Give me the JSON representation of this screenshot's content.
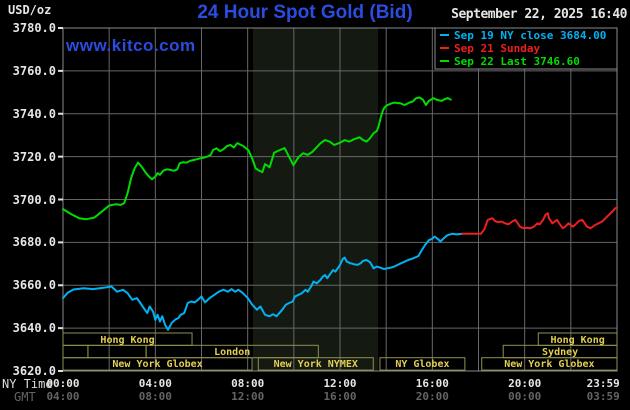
{
  "header": {
    "unit_label": "USD/oz",
    "title": "24 Hour Spot Gold (Bid)",
    "datetime": "September 22, 2025 16:40",
    "watermark": "www.kitco.com"
  },
  "legend": {
    "items": [
      {
        "label": "Sep 19 NY close 3684.00",
        "color": "#00b2f2"
      },
      {
        "label": "Sep 21 Sunday",
        "color": "#ee1f1f"
      },
      {
        "label": "Sep 22 Last 3746.60",
        "color": "#00dc00"
      }
    ]
  },
  "axes": {
    "y": {
      "tick_labels": [
        "3780.0",
        "3760.0",
        "3740.0",
        "3720.0",
        "3700.0",
        "3680.0",
        "3660.0",
        "3640.0",
        "3620.0"
      ],
      "tick_values": [
        3780,
        3760,
        3740,
        3720,
        3700,
        3680,
        3660,
        3640,
        3620
      ]
    },
    "x": {
      "ny_label": "NY Time",
      "gmt_label": "GMT",
      "ny_ticks": [
        {
          "t": 0,
          "label": "00:00"
        },
        {
          "t": 4,
          "label": "04:00"
        },
        {
          "t": 8,
          "label": "08:00"
        },
        {
          "t": 12,
          "label": "12:00"
        },
        {
          "t": 16,
          "label": "16:00"
        },
        {
          "t": 20,
          "label": "20:00"
        },
        {
          "t": 23.4,
          "label": "23:59"
        }
      ],
      "gmt_ticks": [
        {
          "t": 0,
          "label": "04:00"
        },
        {
          "t": 4,
          "label": "08:00"
        },
        {
          "t": 8,
          "label": "12:00"
        },
        {
          "t": 12,
          "label": "16:00"
        },
        {
          "t": 16,
          "label": "20:00"
        },
        {
          "t": 20,
          "label": "00:00"
        },
        {
          "t": 23.4,
          "label": "03:59"
        }
      ]
    }
  },
  "sessions": [
    {
      "row": 0,
      "t0": 0,
      "t1": 5.59,
      "label": "Hong Kong"
    },
    {
      "row": 0,
      "t0": 20.59,
      "t1": 24,
      "label": "Hong Kong"
    },
    {
      "row": 1,
      "t0": 0,
      "t1": 1.08,
      "label": ""
    },
    {
      "row": 1,
      "t0": 1.08,
      "t1": 3.6,
      "label": ""
    },
    {
      "row": 1,
      "t0": 3.6,
      "t1": 11.06,
      "label": "London"
    },
    {
      "row": 1,
      "t0": 19.07,
      "t1": 24,
      "label": "Sydney"
    },
    {
      "row": 2,
      "t0": 0,
      "t1": 8.19,
      "label": "New York Globex"
    },
    {
      "row": 2,
      "t0": 8.46,
      "t1": 13.44,
      "label": "New York NYMEX"
    },
    {
      "row": 2,
      "t0": 13.73,
      "t1": 17.41,
      "label": "NY Globex"
    },
    {
      "row": 2,
      "t0": 18.14,
      "t1": 24,
      "label": "New York Globex"
    }
  ],
  "colors": {
    "background": "#000000",
    "plot_border": "#8a8a8a",
    "grid": "#676767",
    "band": "#141a12",
    "tick": "#e0e0e0",
    "text_white": "#e6e6e6",
    "text_gray": "#646464",
    "blue": "#2b4ce0",
    "session_border": "#91914e",
    "session_text": "#e3cf52",
    "legend_box_border": "#8a8a8a"
  },
  "chart_data": {
    "type": "line",
    "title": "24 Hour Spot Gold (Bid)",
    "xlabel": "NY Time",
    "ylabel": "USD/oz",
    "x_unit": "decimal hours NY time",
    "xlim": [
      0,
      24
    ],
    "ylim": [
      3620,
      3780
    ],
    "grid": true,
    "legend_position": "top-right",
    "highlight_band_x": [
      8.23,
      13.65
    ],
    "series": [
      {
        "name": "Sep 19 NY close 3684.00",
        "color": "#00b2f2",
        "points": [
          [
            0,
            3654
          ],
          [
            0.2,
            3656.5
          ],
          [
            0.45,
            3658
          ],
          [
            0.9,
            3658.6
          ],
          [
            1.3,
            3658.2
          ],
          [
            1.75,
            3658.8
          ],
          [
            2.1,
            3659.4
          ],
          [
            2.35,
            3657
          ],
          [
            2.6,
            3657.9
          ],
          [
            2.8,
            3656.3
          ],
          [
            3.0,
            3653.2
          ],
          [
            3.2,
            3654
          ],
          [
            3.35,
            3651.7
          ],
          [
            3.5,
            3649.3
          ],
          [
            3.65,
            3647
          ],
          [
            3.75,
            3650.1
          ],
          [
            3.9,
            3647.8
          ],
          [
            4.0,
            3643.9
          ],
          [
            4.1,
            3646.2
          ],
          [
            4.2,
            3643.1
          ],
          [
            4.3,
            3645.5
          ],
          [
            4.42,
            3641.6
          ],
          [
            4.55,
            3639.2
          ],
          [
            4.7,
            3642.3
          ],
          [
            4.85,
            3643.9
          ],
          [
            5.0,
            3644.7
          ],
          [
            5.1,
            3646.2
          ],
          [
            5.25,
            3647
          ],
          [
            5.4,
            3651.7
          ],
          [
            5.55,
            3652.4
          ],
          [
            5.7,
            3652
          ],
          [
            5.85,
            3653.2
          ],
          [
            6.0,
            3654.8
          ],
          [
            6.15,
            3652
          ],
          [
            6.35,
            3654
          ],
          [
            6.55,
            3655.5
          ],
          [
            6.75,
            3657
          ],
          [
            6.95,
            3657.9
          ],
          [
            7.15,
            3657
          ],
          [
            7.3,
            3658.2
          ],
          [
            7.45,
            3657
          ],
          [
            7.6,
            3657.9
          ],
          [
            7.8,
            3656.3
          ],
          [
            8.0,
            3654
          ],
          [
            8.2,
            3650.9
          ],
          [
            8.4,
            3648.6
          ],
          [
            8.55,
            3650.1
          ],
          [
            8.75,
            3646.2
          ],
          [
            8.95,
            3645.5
          ],
          [
            9.1,
            3646.5
          ],
          [
            9.25,
            3645.5
          ],
          [
            9.5,
            3648.6
          ],
          [
            9.65,
            3650.9
          ],
          [
            9.8,
            3651.7
          ],
          [
            9.95,
            3652.4
          ],
          [
            10.05,
            3654.8
          ],
          [
            10.2,
            3655.5
          ],
          [
            10.35,
            3656.3
          ],
          [
            10.5,
            3657.9
          ],
          [
            10.6,
            3657
          ],
          [
            10.75,
            3659.4
          ],
          [
            10.85,
            3661.7
          ],
          [
            11.0,
            3660.9
          ],
          [
            11.15,
            3662.5
          ],
          [
            11.25,
            3664
          ],
          [
            11.35,
            3664.8
          ],
          [
            11.45,
            3663.3
          ],
          [
            11.6,
            3665.6
          ],
          [
            11.7,
            3667.1
          ],
          [
            11.8,
            3666.3
          ],
          [
            11.9,
            3667.9
          ],
          [
            12.0,
            3669.5
          ],
          [
            12.12,
            3672.3
          ],
          [
            12.2,
            3672.9
          ],
          [
            12.3,
            3671
          ],
          [
            12.45,
            3670.3
          ],
          [
            12.6,
            3669.8
          ],
          [
            12.75,
            3669.5
          ],
          [
            12.9,
            3670.3
          ],
          [
            13.0,
            3671.4
          ],
          [
            13.15,
            3671.8
          ],
          [
            13.3,
            3670.8
          ],
          [
            13.45,
            3667.9
          ],
          [
            13.6,
            3668.7
          ],
          [
            13.75,
            3668.2
          ],
          [
            13.9,
            3667.6
          ],
          [
            14.05,
            3667.9
          ],
          [
            14.2,
            3668.2
          ],
          [
            14.35,
            3668.7
          ],
          [
            14.5,
            3669.5
          ],
          [
            14.65,
            3670.3
          ],
          [
            14.8,
            3671
          ],
          [
            14.95,
            3671.8
          ],
          [
            15.1,
            3672.3
          ],
          [
            15.25,
            3672.9
          ],
          [
            15.4,
            3673.7
          ],
          [
            15.55,
            3676.5
          ],
          [
            15.7,
            3679
          ],
          [
            15.85,
            3681
          ],
          [
            16.0,
            3681.7
          ],
          [
            16.1,
            3682.7
          ],
          [
            16.25,
            3681.5
          ],
          [
            16.35,
            3680.4
          ],
          [
            16.5,
            3682
          ],
          [
            16.65,
            3683.3
          ],
          [
            16.85,
            3684
          ],
          [
            17.05,
            3683.7
          ],
          [
            17.3,
            3684
          ]
        ]
      },
      {
        "name": "Sep 21 Sunday",
        "color": "#ee1f1f",
        "points": [
          [
            17.3,
            3684
          ],
          [
            18.1,
            3684
          ],
          [
            18.25,
            3686
          ],
          [
            18.4,
            3690.5
          ],
          [
            18.6,
            3691.3
          ],
          [
            18.7,
            3690
          ],
          [
            18.85,
            3689.4
          ],
          [
            19.0,
            3689.7
          ],
          [
            19.15,
            3688.9
          ],
          [
            19.3,
            3688.4
          ],
          [
            19.45,
            3689.7
          ],
          [
            19.6,
            3690.5
          ],
          [
            19.7,
            3688.9
          ],
          [
            19.8,
            3687.3
          ],
          [
            19.95,
            3686.6
          ],
          [
            20.1,
            3686.8
          ],
          [
            20.25,
            3686.6
          ],
          [
            20.4,
            3687.3
          ],
          [
            20.55,
            3688.9
          ],
          [
            20.65,
            3688.4
          ],
          [
            20.8,
            3690.5
          ],
          [
            20.9,
            3692.8
          ],
          [
            21.0,
            3693.6
          ],
          [
            21.05,
            3691.3
          ],
          [
            21.2,
            3688.9
          ],
          [
            21.3,
            3689.7
          ],
          [
            21.4,
            3690.5
          ],
          [
            21.55,
            3688.1
          ],
          [
            21.65,
            3686.6
          ],
          [
            21.75,
            3687.3
          ],
          [
            21.9,
            3688.9
          ],
          [
            22.0,
            3688.1
          ],
          [
            22.1,
            3687.3
          ],
          [
            22.25,
            3688.9
          ],
          [
            22.35,
            3690
          ],
          [
            22.5,
            3690.5
          ],
          [
            22.6,
            3688.9
          ],
          [
            22.7,
            3687.3
          ],
          [
            22.85,
            3686.6
          ],
          [
            22.95,
            3687.3
          ],
          [
            23.05,
            3688.1
          ],
          [
            23.2,
            3688.9
          ],
          [
            23.35,
            3689.7
          ],
          [
            23.5,
            3691.3
          ],
          [
            23.65,
            3692.8
          ],
          [
            23.8,
            3694.4
          ],
          [
            23.9,
            3695.7
          ],
          [
            24,
            3696.3
          ]
        ]
      },
      {
        "name": "Sep 22 Last 3746.60",
        "color": "#00dc00",
        "points": [
          [
            0,
            3695.5
          ],
          [
            0.35,
            3693.2
          ],
          [
            0.7,
            3691.3
          ],
          [
            1.0,
            3690.8
          ],
          [
            1.35,
            3691.5
          ],
          [
            1.7,
            3694.5
          ],
          [
            2.0,
            3697.2
          ],
          [
            2.3,
            3697.8
          ],
          [
            2.5,
            3697.5
          ],
          [
            2.65,
            3698.3
          ],
          [
            2.8,
            3703
          ],
          [
            2.95,
            3710
          ],
          [
            3.1,
            3714.5
          ],
          [
            3.25,
            3717.2
          ],
          [
            3.4,
            3715.4
          ],
          [
            3.55,
            3713
          ],
          [
            3.7,
            3711
          ],
          [
            3.85,
            3709.4
          ],
          [
            4.0,
            3710.7
          ],
          [
            4.1,
            3712.3
          ],
          [
            4.2,
            3711.5
          ],
          [
            4.35,
            3713.5
          ],
          [
            4.5,
            3714.1
          ],
          [
            4.65,
            3713.8
          ],
          [
            4.8,
            3713.4
          ],
          [
            4.95,
            3714.1
          ],
          [
            5.05,
            3716.9
          ],
          [
            5.2,
            3717.4
          ],
          [
            5.35,
            3717.2
          ],
          [
            5.5,
            3718
          ],
          [
            5.65,
            3718.4
          ],
          [
            5.8,
            3718.8
          ],
          [
            5.95,
            3719.2
          ],
          [
            6.1,
            3719.5
          ],
          [
            6.25,
            3720
          ],
          [
            6.4,
            3720.8
          ],
          [
            6.5,
            3723.1
          ],
          [
            6.65,
            3723.9
          ],
          [
            6.8,
            3722.6
          ],
          [
            6.95,
            3723.4
          ],
          [
            7.1,
            3724.9
          ],
          [
            7.25,
            3725.4
          ],
          [
            7.4,
            3724.3
          ],
          [
            7.55,
            3726.3
          ],
          [
            7.8,
            3725
          ],
          [
            8.03,
            3723
          ],
          [
            8.2,
            3719
          ],
          [
            8.35,
            3714.5
          ],
          [
            8.5,
            3713.5
          ],
          [
            8.64,
            3712.8
          ],
          [
            8.75,
            3716.5
          ],
          [
            8.95,
            3715
          ],
          [
            9.15,
            3721.9
          ],
          [
            9.4,
            3723.1
          ],
          [
            9.6,
            3724
          ],
          [
            9.75,
            3720.8
          ],
          [
            9.98,
            3716
          ],
          [
            10.2,
            3719.7
          ],
          [
            10.4,
            3721.6
          ],
          [
            10.6,
            3720.8
          ],
          [
            10.8,
            3722.2
          ],
          [
            11.15,
            3726.2
          ],
          [
            11.35,
            3727.7
          ],
          [
            11.55,
            3727
          ],
          [
            11.75,
            3725.4
          ],
          [
            12.0,
            3726.5
          ],
          [
            12.2,
            3727.7
          ],
          [
            12.4,
            3727
          ],
          [
            12.6,
            3728.1
          ],
          [
            12.85,
            3729
          ],
          [
            13.0,
            3727.7
          ],
          [
            13.15,
            3727
          ],
          [
            13.3,
            3728.6
          ],
          [
            13.45,
            3730.9
          ],
          [
            13.6,
            3732
          ],
          [
            13.68,
            3734.5
          ],
          [
            13.76,
            3738
          ],
          [
            13.84,
            3741
          ],
          [
            13.92,
            3742.8
          ],
          [
            14.0,
            3743.7
          ],
          [
            14.15,
            3744.5
          ],
          [
            14.35,
            3745.2
          ],
          [
            14.6,
            3744.9
          ],
          [
            14.8,
            3744.1
          ],
          [
            15.0,
            3745.2
          ],
          [
            15.15,
            3745.7
          ],
          [
            15.3,
            3747.3
          ],
          [
            15.45,
            3747.6
          ],
          [
            15.6,
            3746.5
          ],
          [
            15.72,
            3744.1
          ],
          [
            15.85,
            3746
          ],
          [
            16.05,
            3747.3
          ],
          [
            16.2,
            3746.5
          ],
          [
            16.4,
            3746
          ],
          [
            16.55,
            3746.9
          ],
          [
            16.67,
            3747.3
          ],
          [
            16.8,
            3746.6
          ]
        ]
      }
    ]
  }
}
